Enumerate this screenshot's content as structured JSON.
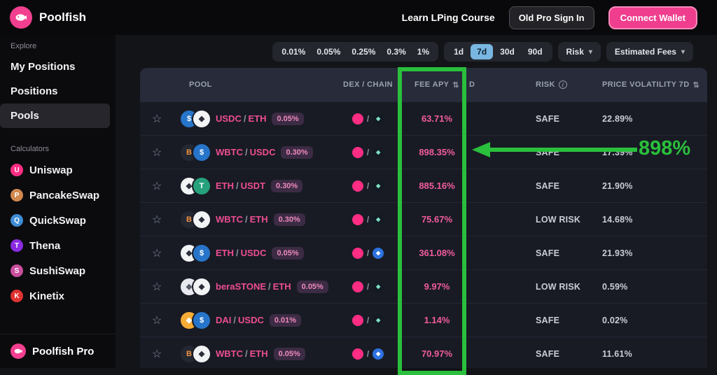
{
  "header": {
    "brand": "Poolfish",
    "learn_link": "Learn LPing Course",
    "old_pro_button": "Old Pro Sign In",
    "connect_wallet_button": "Connect Wallet"
  },
  "sidebar": {
    "explore_label": "Explore",
    "explore_items": [
      {
        "label": "My Positions",
        "active": false
      },
      {
        "label": "Positions",
        "active": false
      },
      {
        "label": "Pools",
        "active": true
      }
    ],
    "calculators_label": "Calculators",
    "calculator_items": [
      {
        "label": "Uniswap",
        "color": "#ff2d84",
        "glyph": "U"
      },
      {
        "label": "PancakeSwap",
        "color": "#d1884f",
        "glyph": "P"
      },
      {
        "label": "QuickSwap",
        "color": "#3f8cd5",
        "glyph": "Q"
      },
      {
        "label": "Thena",
        "color": "#8a2be2",
        "glyph": "T"
      },
      {
        "label": "SushiSwap",
        "color": "#c94f9e",
        "glyph": "S"
      },
      {
        "label": "Kinetix",
        "color": "#e03131",
        "glyph": "K"
      }
    ],
    "footer_item": "Poolfish Pro"
  },
  "filters": {
    "fee_tiers": [
      "0.01%",
      "0.05%",
      "0.25%",
      "0.3%",
      "1%"
    ],
    "time_ranges": [
      "1d",
      "7d",
      "30d",
      "90d"
    ],
    "active_time_range": "7d",
    "risk_dropdown_label": "Risk",
    "estimated_fees_dropdown_label": "Estimated Fees"
  },
  "table": {
    "header": {
      "pool": "POOL",
      "dex_chain": "DEX / CHAIN",
      "fee_apy": "FEE APY",
      "usd_partial": "D",
      "risk": "RISK",
      "volatility": "PRICE VOLATILITY 7D"
    },
    "rows": [
      {
        "token0": "USDC",
        "token1": "ETH",
        "fee_tier": "0.05%",
        "dex": "uniswap",
        "chain": "ethereum",
        "fee_apy": "63.71%",
        "risk": "SAFE",
        "volatility": "22.89%"
      },
      {
        "token0": "WBTC",
        "token1": "USDC",
        "fee_tier": "0.30%",
        "dex": "uniswap",
        "chain": "ethereum",
        "fee_apy": "898.35%",
        "risk": "SAFE",
        "volatility": "17.39%"
      },
      {
        "token0": "ETH",
        "token1": "USDT",
        "fee_tier": "0.30%",
        "dex": "uniswap",
        "chain": "ethereum",
        "fee_apy": "885.16%",
        "risk": "SAFE",
        "volatility": "21.90%"
      },
      {
        "token0": "WBTC",
        "token1": "ETH",
        "fee_tier": "0.30%",
        "dex": "uniswap",
        "chain": "ethereum",
        "fee_apy": "75.67%",
        "risk": "LOW RISK",
        "volatility": "14.68%"
      },
      {
        "token0": "ETH",
        "token1": "USDC",
        "fee_tier": "0.05%",
        "dex": "uniswap",
        "chain": "arbitrum",
        "fee_apy": "361.08%",
        "risk": "SAFE",
        "volatility": "21.93%"
      },
      {
        "token0": "beraSTONE",
        "token1": "ETH",
        "fee_tier": "0.05%",
        "dex": "uniswap",
        "chain": "ethereum",
        "fee_apy": "9.97%",
        "risk": "LOW RISK",
        "volatility": "0.59%"
      },
      {
        "token0": "DAI",
        "token1": "USDC",
        "fee_tier": "0.01%",
        "dex": "uniswap",
        "chain": "ethereum",
        "fee_apy": "1.14%",
        "risk": "SAFE",
        "volatility": "0.02%"
      },
      {
        "token0": "WBTC",
        "token1": "ETH",
        "fee_tier": "0.05%",
        "dex": "uniswap",
        "chain": "arbitrum",
        "fee_apy": "70.97%",
        "risk": "SAFE",
        "volatility": "11.61%"
      }
    ],
    "token_icons": {
      "USDC": {
        "bg": "#2775ca",
        "fg": "#ffffff",
        "glyph": "$"
      },
      "ETH": {
        "bg": "#f2f3f5",
        "fg": "#2a2f3a",
        "glyph": "◆"
      },
      "WBTC": {
        "bg": "#232832",
        "fg": "#f09242",
        "glyph": "B"
      },
      "USDT": {
        "bg": "#26a17b",
        "fg": "#ffffff",
        "glyph": "T"
      },
      "DAI": {
        "bg": "#f5ac37",
        "fg": "#ffffff",
        "glyph": "◆"
      },
      "beraSTONE": {
        "bg": "#e8e9ee",
        "fg": "#555b68",
        "glyph": "◆"
      }
    },
    "chain_icons": {
      "ethereum": {
        "bg": "#141a24",
        "fg": "#7fe0c3",
        "glyph": "◆"
      },
      "arbitrum": {
        "bg": "#2d72e0",
        "fg": "#ffffff",
        "glyph": "◆"
      }
    },
    "dex_icons": {
      "uniswap": {
        "color": "#ff2d84"
      }
    }
  },
  "annotations": {
    "highlight_label": "898%",
    "annotation_color": "#2abf3c"
  },
  "colors": {
    "accent_pink": "#ee4d92",
    "time_active_blue": "#79b7e2"
  }
}
